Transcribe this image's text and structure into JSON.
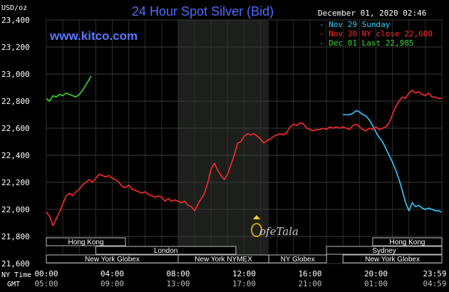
{
  "header": {
    "title": "24 Hour Spot Silver (Bid)",
    "unit": "USD/oz",
    "datetime": "December 01, 2020 02:46",
    "website": "www.kitco.com",
    "watermark": "ofeTala"
  },
  "legend": [
    {
      "label": "Nov 29 Sunday",
      "color": "#33ccff"
    },
    {
      "label": "Nov 30 NY close 22,600",
      "color": "#ff2a2a"
    },
    {
      "label": "Dec 01 Last 22,985",
      "color": "#33dd33"
    }
  ],
  "timezones": {
    "ny_label": "NY Time",
    "gmt_label": "GMT"
  },
  "sessions": [
    {
      "label": "Hong Kong",
      "start": 0,
      "end": 4.8,
      "row": 0
    },
    {
      "label": "Hong Kong",
      "start": 19.8,
      "end": 24,
      "row": 0
    },
    {
      "label": "London",
      "start": 3,
      "end": 11.5,
      "row": 1
    },
    {
      "label": "Sydney",
      "start": 17,
      "end": 24,
      "row": 1
    },
    {
      "label": "New York Globex",
      "start": 0,
      "end": 8,
      "row": 2
    },
    {
      "label": "New York NYMEX",
      "start": 8,
      "end": 13.5,
      "row": 2
    },
    {
      "label": "NY Globex",
      "start": 13.5,
      "end": 17,
      "row": 2
    },
    {
      "label": "New York Globex",
      "start": 18,
      "end": 24,
      "row": 2
    }
  ],
  "chart_data": {
    "type": "line",
    "xlabels_ny": [
      "00:00",
      "04:00",
      "08:00",
      "12:00",
      "16:00",
      "20:00",
      "23:59"
    ],
    "xlabels_gmt": [
      "05:00",
      "09:00",
      "13:00",
      "17:00",
      "21:00",
      "01:00",
      "04:59"
    ],
    "xlim": [
      0,
      24
    ],
    "ylim": [
      21600,
      23400
    ],
    "yticks": [
      21600,
      21800,
      22000,
      22200,
      22400,
      22600,
      22800,
      23000,
      23200,
      23400
    ],
    "ytick_labels": [
      "21,600",
      "21,800",
      "22,000",
      "22,200",
      "22,400",
      "22,600",
      "22,800",
      "23,000",
      "23,200",
      "23,400"
    ],
    "grid": true,
    "nymex_band": [
      8,
      13.5
    ],
    "series": [
      {
        "name": "Nov 29 Sunday",
        "color": "#33ccff",
        "x": [
          18.0,
          18.4,
          18.6,
          18.8,
          19.0,
          19.2,
          19.4,
          19.6,
          19.8,
          20.0,
          20.2,
          20.4,
          20.6,
          20.8,
          21.0,
          21.2,
          21.4,
          21.6,
          21.8,
          22.0,
          22.2,
          22.4,
          22.6,
          22.8,
          23.0,
          23.2,
          23.4,
          23.6,
          23.8,
          23.98
        ],
        "y": [
          22700,
          22700,
          22710,
          22730,
          22720,
          22700,
          22690,
          22660,
          22620,
          22570,
          22530,
          22500,
          22450,
          22400,
          22350,
          22290,
          22220,
          22140,
          22050,
          21990,
          22050,
          22020,
          22030,
          22010,
          22000,
          22010,
          22000,
          21990,
          21990,
          21980
        ]
      },
      {
        "name": "Nov 30 NY close 22,600",
        "color": "#ff2a2a",
        "x": [
          0.0,
          0.2,
          0.4,
          0.6,
          0.8,
          1.0,
          1.2,
          1.4,
          1.6,
          1.8,
          2.0,
          2.2,
          2.4,
          2.6,
          2.8,
          3.0,
          3.2,
          3.4,
          3.6,
          3.8,
          4.0,
          4.2,
          4.4,
          4.6,
          4.8,
          5.0,
          5.2,
          5.4,
          5.6,
          5.8,
          6.0,
          6.2,
          6.4,
          6.6,
          6.8,
          7.0,
          7.2,
          7.4,
          7.6,
          7.8,
          8.0,
          8.2,
          8.4,
          8.6,
          8.8,
          9.0,
          9.2,
          9.4,
          9.6,
          9.8,
          10.0,
          10.2,
          10.4,
          10.6,
          10.8,
          11.0,
          11.2,
          11.4,
          11.6,
          11.8,
          12.0,
          12.2,
          12.4,
          12.6,
          12.8,
          13.0,
          13.2,
          13.4,
          13.6,
          13.8,
          14.0,
          14.2,
          14.4,
          14.6,
          14.8,
          15.0,
          15.2,
          15.4,
          15.6,
          15.8,
          16.0,
          16.2,
          16.4,
          16.6,
          16.8,
          17.0,
          17.2,
          17.4,
          17.6,
          17.8,
          18.0,
          18.2,
          18.4,
          18.6,
          18.8,
          19.0,
          19.2,
          19.4,
          19.6,
          19.8,
          20.0,
          20.2,
          20.4,
          20.6,
          20.8,
          21.0,
          21.2,
          21.4,
          21.6,
          21.8,
          22.0,
          22.2,
          22.4,
          22.6,
          22.8,
          23.0,
          23.2,
          23.4,
          23.6,
          23.8,
          23.98
        ],
        "y": [
          21980,
          21950,
          21880,
          21930,
          21980,
          22040,
          22100,
          22120,
          22100,
          22130,
          22150,
          22180,
          22200,
          22220,
          22200,
          22230,
          22260,
          22250,
          22240,
          22250,
          22230,
          22220,
          22200,
          22170,
          22160,
          22180,
          22150,
          22140,
          22130,
          22120,
          22130,
          22110,
          22100,
          22090,
          22100,
          22090,
          22060,
          22080,
          22060,
          22070,
          22060,
          22050,
          22060,
          22030,
          22020,
          21990,
          22040,
          22080,
          22120,
          22200,
          22300,
          22340,
          22290,
          22250,
          22220,
          22260,
          22330,
          22400,
          22490,
          22500,
          22540,
          22560,
          22550,
          22560,
          22540,
          22520,
          22490,
          22510,
          22520,
          22540,
          22550,
          22560,
          22550,
          22570,
          22610,
          22630,
          22620,
          22640,
          22630,
          22600,
          22590,
          22580,
          22590,
          22590,
          22600,
          22590,
          22610,
          22600,
          22610,
          22600,
          22610,
          22600,
          22590,
          22620,
          22630,
          22610,
          22590,
          22580,
          22600,
          22590,
          22610,
          22590,
          22600,
          22610,
          22640,
          22700,
          22760,
          22800,
          22830,
          22820,
          22860,
          22880,
          22860,
          22870,
          22850,
          22840,
          22860,
          22830,
          22830,
          22820,
          22820
        ]
      },
      {
        "name": "Dec 01 Last 22,985",
        "color": "#33dd33",
        "x": [
          0.0,
          0.2,
          0.4,
          0.6,
          0.8,
          1.0,
          1.2,
          1.4,
          1.6,
          1.8,
          2.0,
          2.2,
          2.4,
          2.6,
          2.72
        ],
        "y": [
          22820,
          22800,
          22840,
          22830,
          22850,
          22840,
          22860,
          22850,
          22840,
          22830,
          22850,
          22880,
          22920,
          22960,
          22985
        ]
      }
    ]
  }
}
